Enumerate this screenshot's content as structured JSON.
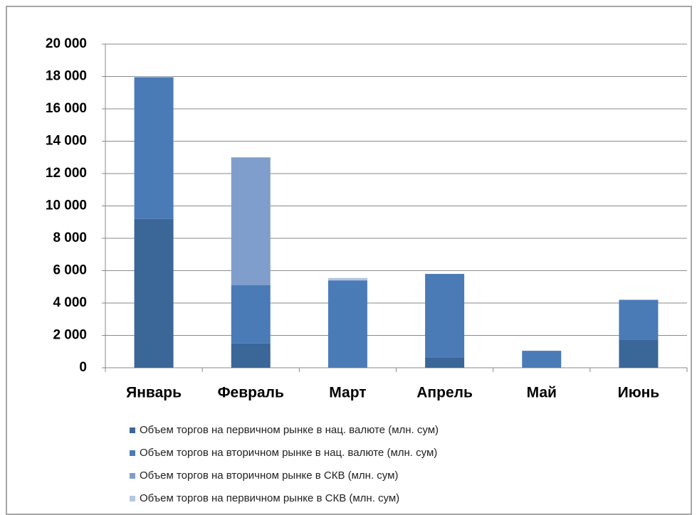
{
  "chart_data": {
    "type": "stacked_bar",
    "categories": [
      "Январь",
      "Февраль",
      "Март",
      "Апрель",
      "Май",
      "Июнь"
    ],
    "series": [
      {
        "name": "Объем торгов на первичном рынке в нац. валюте (млн. сум)",
        "color": "#3b6698",
        "values": [
          9200,
          1500,
          0,
          650,
          0,
          1750
        ]
      },
      {
        "name": "Объем торгов на вторичном рынке в нац. валюте (млн. сум)",
        "color": "#4a7bb6",
        "values": [
          8750,
          3600,
          5400,
          5150,
          1050,
          2450
        ]
      },
      {
        "name": "Объем торгов на вторичном рынке в СКВ (млн. сум)",
        "color": "#7f9ecb",
        "values": [
          0,
          7900,
          0,
          0,
          0,
          0
        ]
      },
      {
        "name": "Объем торгов на первичном рынке в СКВ (млн. сум)",
        "color": "#b4c6e1",
        "values": [
          50,
          0,
          150,
          0,
          0,
          0
        ]
      }
    ],
    "ylim": [
      0,
      20000
    ],
    "yticks": [
      0,
      {
        "value": 2000,
        "label": "2 000"
      },
      {
        "value": 4000,
        "label": "4 000"
      },
      {
        "value": 6000,
        "label": "6 000"
      },
      {
        "value": 8000,
        "label": "8 000"
      },
      {
        "value": 10000,
        "label": "10 000"
      },
      {
        "value": 12000,
        "label": "12 000"
      },
      {
        "value": 14000,
        "label": "14 000"
      },
      {
        "value": 16000,
        "label": "16 000"
      },
      {
        "value": 18000,
        "label": "18 000"
      },
      {
        "value": 20000,
        "label": "20 000"
      }
    ],
    "grid": true
  }
}
